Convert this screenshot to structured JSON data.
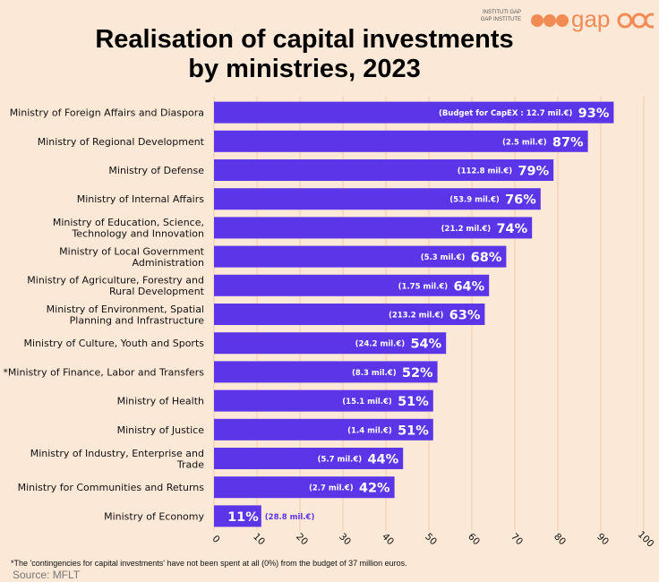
{
  "logo": {
    "line1": "INSTITUTI GAP",
    "line2": "GAP INSTITUTE",
    "word": "gap",
    "color": "#f28a54"
  },
  "chart_data": {
    "type": "bar",
    "orientation": "horizontal",
    "title_line1": "Realisation of capital investments",
    "title_line2": "by ministries, 2023",
    "categories": [
      "Ministry of Foreign Affairs and Diaspora",
      "Ministry of Regional Development",
      "Ministry of Defense",
      "Ministry of Internal Affairs",
      "Ministry of Education, Science,\nTechnology and Innovation",
      "Ministry of Local Government\nAdministration",
      "Ministry of Agriculture, Forestry and\nRural Development",
      "Ministry of Environment, Spatial\nPlanning and Infrastructure",
      "Ministry of Culture, Youth and Sports",
      "*Ministry of Finance, Labor and Transfers",
      "Ministry of Health",
      "Ministry of Justice",
      "Ministry of Industry, Enterprise and\nTrade",
      "Ministry for Communities and Returns",
      "Ministry of Economy"
    ],
    "values": [
      93,
      87,
      79,
      76,
      74,
      68,
      64,
      63,
      54,
      52,
      51,
      51,
      44,
      42,
      11
    ],
    "value_labels": [
      "93%",
      "87%",
      "79%",
      "76%",
      "74%",
      "68%",
      "64%",
      "63%",
      "54%",
      "52%",
      "51%",
      "51%",
      "44%",
      "42%",
      "11%"
    ],
    "budget_labels": [
      "(Budget for CapEX : 12.7 mil.€)",
      "(2.5 mil.€)",
      "(112.8 mil.€)",
      "(53.9 mil.€)",
      "(21.2 mil.€)",
      "(5.3 mil.€)",
      "(1.75 mil.€)",
      "(213.2 mil.€)",
      "(24.2 mil.€)",
      "(8.3 mil.€)",
      "(15.1 mil.€)",
      "(1.4 mil.€)",
      "(5.7 mil.€)",
      "(2.7 mil.€)",
      "(28.8 mil.€)"
    ],
    "xlim": [
      0,
      100
    ],
    "xticks": [
      0,
      10,
      20,
      30,
      40,
      50,
      60,
      70,
      80,
      90,
      100
    ],
    "grid": true,
    "bar_color": "#5b36e8",
    "grid_color": "#f3c9a9",
    "footnote": "*The 'contingencies for capital investments' have not been spent at all (0%) from the budget of 37 million euros.",
    "source": "Source: MFLT"
  }
}
